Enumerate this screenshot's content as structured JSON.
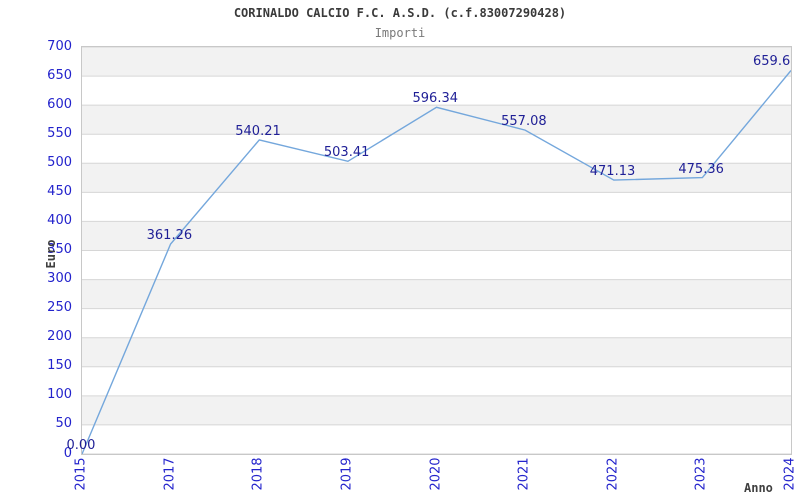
{
  "chart_data": {
    "type": "line",
    "title": "CORINALDO CALCIO F.C. A.S.D. (c.f.83007290428)",
    "subtitle": "Importi",
    "xlabel": "Anno",
    "ylabel": "Euro",
    "categories": [
      "2015",
      "2017",
      "2018",
      "2019",
      "2020",
      "2021",
      "2022",
      "2023",
      "2024"
    ],
    "values": [
      0.0,
      361.26,
      540.21,
      503.41,
      596.34,
      557.08,
      471.13,
      475.36,
      659.6
    ],
    "point_labels": [
      "0.00",
      "361.26",
      "540.21",
      "503.41",
      "596.34",
      "557.08",
      "471.13",
      "475.36",
      "659.6"
    ],
    "ylim": [
      0,
      700
    ],
    "ytick_step": 50,
    "ytick_labels": [
      "0",
      "50",
      "100",
      "150",
      "200",
      "250",
      "300",
      "350",
      "400",
      "450",
      "500",
      "550",
      "600",
      "650",
      "700"
    ],
    "grid": true,
    "alternating_bands": true,
    "legend_position": "none"
  },
  "colors": {
    "line": "#74a7dc",
    "tick_label": "#2323cc",
    "data_label": "#1f1f96",
    "axis_title": "#404040",
    "grid_line": "#d6d6d6",
    "plot_border": "#c8c8c8",
    "band_gray": "#f2f2f2",
    "band_white": "#ffffff",
    "title_text": "#3a3a3a",
    "subtitle_text": "#7a7a7a"
  }
}
